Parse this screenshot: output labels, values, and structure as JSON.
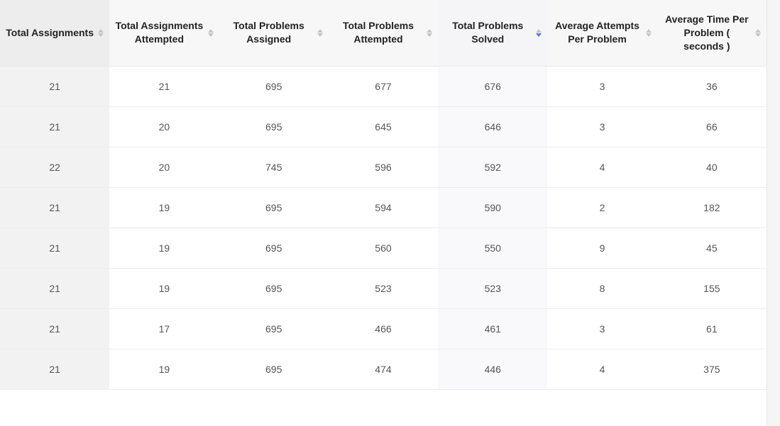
{
  "table": {
    "colors": {
      "header_bg": "#f7f7f7",
      "shade_col_bg": "#f2f2f2",
      "sorted_col_bg": "#f9f9fb",
      "row_border": "#eeeeee",
      "text": "#555555",
      "header_text": "#222222",
      "sort_arrow_inactive": "#c4c4c4",
      "sort_arrow_active": "#5a74d8",
      "page_bg": "#f5f5f5"
    },
    "columns": [
      {
        "key": "total_assignments",
        "label": "Total Assignments",
        "shaded": true,
        "sorted": null
      },
      {
        "key": "total_assignments_attempted",
        "label": "Total Assignments Attempted",
        "shaded": false,
        "sorted": null
      },
      {
        "key": "total_problems_assigned",
        "label": "Total Problems Assigned",
        "shaded": false,
        "sorted": null
      },
      {
        "key": "total_problems_attempted",
        "label": "Total Problems Attempted",
        "shaded": false,
        "sorted": null
      },
      {
        "key": "total_problems_solved",
        "label": "Total Problems Solved",
        "shaded": false,
        "sorted": "desc"
      },
      {
        "key": "avg_attempts_per_problem",
        "label": "Average Attempts Per Problem",
        "shaded": false,
        "sorted": null
      },
      {
        "key": "avg_time_per_problem",
        "label": "Average Time Per Problem ( seconds )",
        "shaded": false,
        "sorted": null
      }
    ],
    "rows": [
      [
        21,
        21,
        695,
        677,
        676,
        3,
        36
      ],
      [
        21,
        20,
        695,
        645,
        646,
        3,
        66
      ],
      [
        22,
        20,
        745,
        596,
        592,
        4,
        40
      ],
      [
        21,
        19,
        695,
        594,
        590,
        2,
        182
      ],
      [
        21,
        19,
        695,
        560,
        550,
        9,
        45
      ],
      [
        21,
        19,
        695,
        523,
        523,
        8,
        155
      ],
      [
        21,
        17,
        695,
        466,
        461,
        3,
        61
      ],
      [
        21,
        19,
        695,
        474,
        446,
        4,
        375
      ]
    ]
  }
}
